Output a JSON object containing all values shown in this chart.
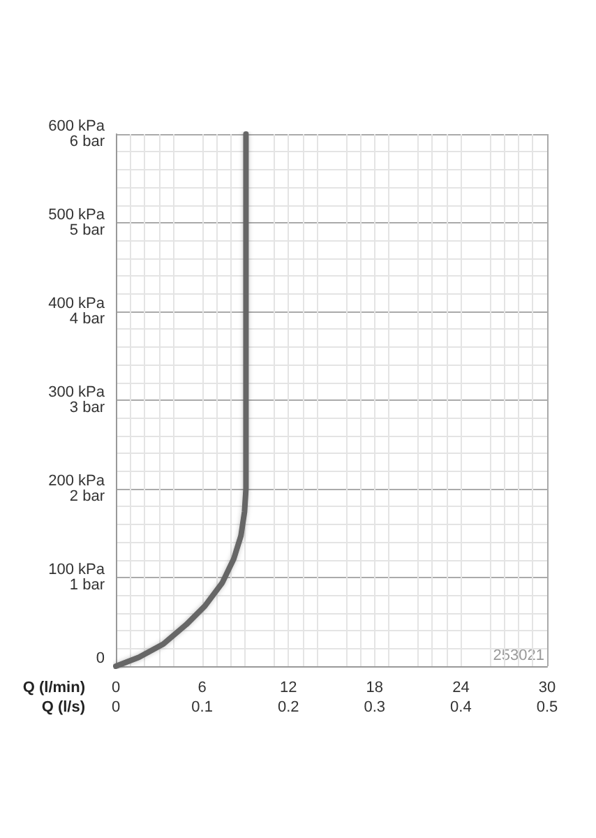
{
  "chart_data": {
    "type": "line",
    "xlabel": "Q (l/min)",
    "x2label": "Q (l/s)",
    "x": [
      0,
      1.6,
      3.3,
      4.9,
      6.2,
      7.4,
      8.2,
      8.7,
      8.95,
      9.05,
      9.05
    ],
    "series": [
      {
        "color": "#666666",
        "values": [
          0,
          10,
          25,
          47,
          68,
          94,
          121,
          147,
          174,
          200,
          600
        ]
      }
    ],
    "xlim": [
      0,
      30
    ],
    "xticks": [
      0,
      6,
      12,
      18,
      24,
      30
    ],
    "x2lim": [
      0,
      0.5
    ],
    "x2ticks": [
      0,
      0.1,
      0.2,
      0.3,
      0.4,
      0.5
    ],
    "ylim": [
      0,
      600
    ],
    "yticks": [
      0,
      {
        "value": 100,
        "label": "100 kPa"
      },
      {
        "value": 200,
        "label": "200 kPa"
      },
      {
        "value": 300,
        "label": "300 kPa"
      },
      {
        "value": 400,
        "label": "400 kPa"
      },
      {
        "value": 500,
        "label": "500 kPa"
      },
      {
        "value": 600,
        "label": "600 kPa"
      }
    ],
    "y2lim": [
      0,
      6
    ],
    "y2ticks": [
      {
        "value": 1,
        "label": "1 bar"
      },
      {
        "value": 2,
        "label": "2 bar"
      },
      {
        "value": 3,
        "label": "3 bar"
      },
      {
        "value": 4,
        "label": "4 bar"
      },
      {
        "value": 5,
        "label": "5 bar"
      },
      {
        "value": 6,
        "label": "6 bar"
      }
    ],
    "grid": true,
    "line_style": "solid",
    "annotations": [
      "253021"
    ]
  }
}
